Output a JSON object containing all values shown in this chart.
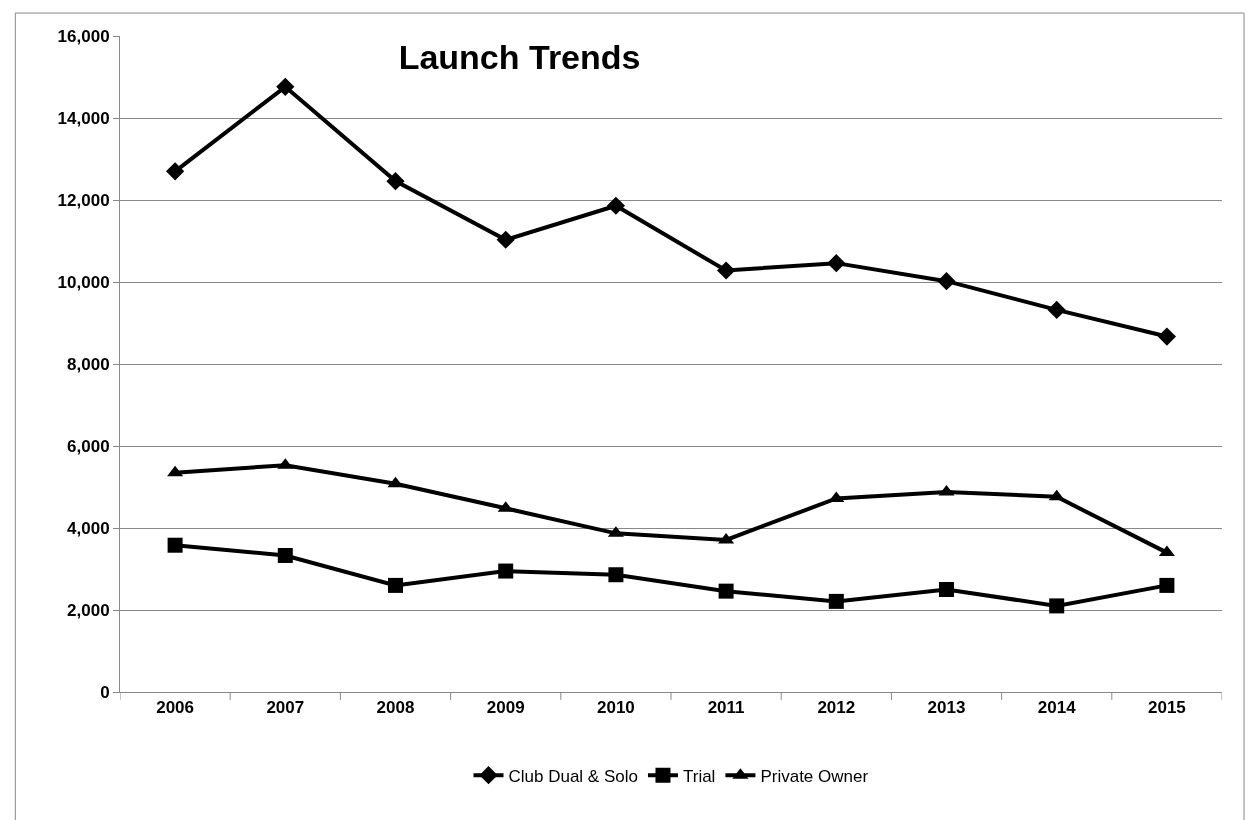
{
  "chart_data": {
    "type": "line",
    "title": "Launch Trends",
    "categories": [
      "2006",
      "2007",
      "2008",
      "2009",
      "2010",
      "2011",
      "2012",
      "2013",
      "2014",
      "2015"
    ],
    "series": [
      {
        "name": "Club Dual & Solo",
        "color": "#000000",
        "marker": "diamond",
        "values": [
          12700,
          14760,
          12460,
          11030,
          11860,
          10280,
          10460,
          10020,
          9320,
          8670
        ]
      },
      {
        "name": "Trial",
        "color": "#000000",
        "marker": "square",
        "values": [
          3580,
          3330,
          2600,
          2950,
          2860,
          2460,
          2210,
          2500,
          2100,
          2600
        ]
      },
      {
        "name": "Private Owner",
        "color": "#000000",
        "marker": "triangle",
        "values": [
          5350,
          5530,
          5080,
          4480,
          3870,
          3710,
          4720,
          4880,
          4760,
          3400
        ]
      }
    ],
    "ylim": [
      0,
      16000
    ],
    "yticks": [
      {
        "value": 0,
        "label": "0"
      },
      {
        "value": 2000,
        "label": "2,000"
      },
      {
        "value": 4000,
        "label": "4,000"
      },
      {
        "value": 6000,
        "label": "6,000"
      },
      {
        "value": 8000,
        "label": "8,000"
      },
      {
        "value": 10000,
        "label": "10,000"
      },
      {
        "value": 12000,
        "label": "12,000"
      },
      {
        "value": 14000,
        "label": "14,000"
      },
      {
        "value": 16000,
        "label": "16,000"
      }
    ],
    "grid": "y",
    "legend": "bottom",
    "line_style": "solid"
  }
}
